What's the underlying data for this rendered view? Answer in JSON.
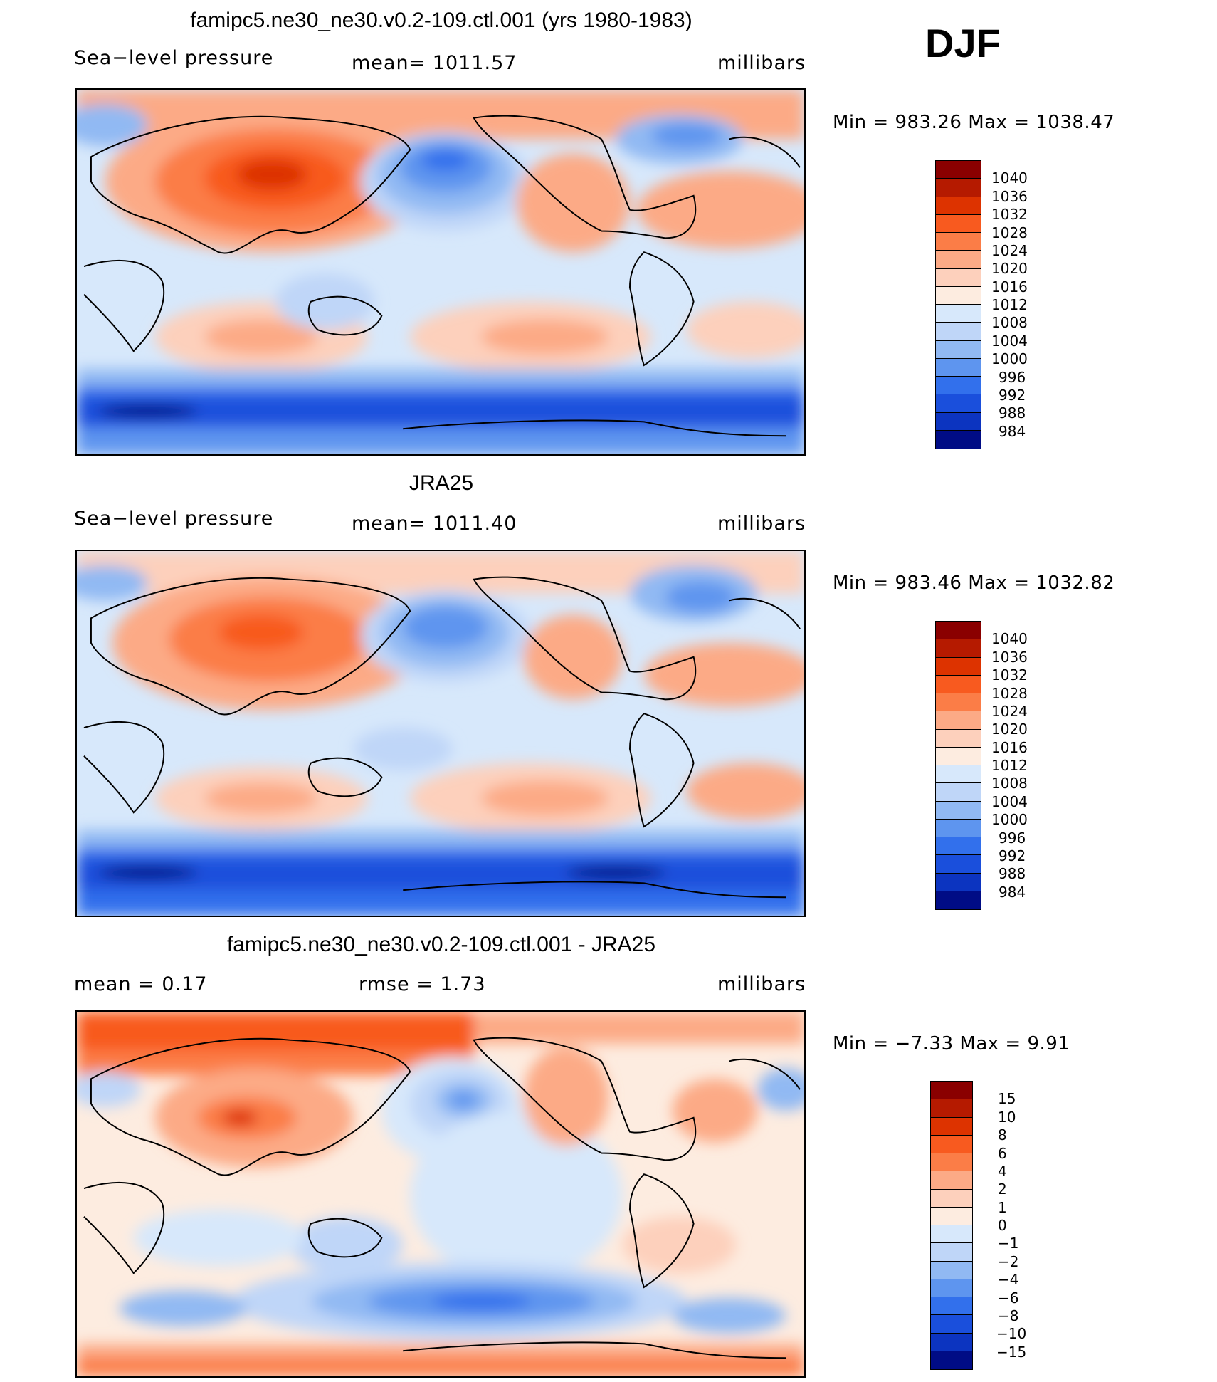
{
  "header": {
    "season": "DJF"
  },
  "panels": [
    {
      "title": "famipc5.ne30_ne30.v0.2-109.ctl.001 (yrs 1980-1983)",
      "left_label": "Sea−level pressure",
      "center_label": "mean=  1011.57",
      "right_label": "millibars",
      "minmax": "Min  =  983.26  Max  =  1038.47",
      "colorbar": {
        "labels": [
          "1040",
          "1036",
          "1032",
          "1028",
          "1024",
          "1020",
          "1016",
          "1012",
          "1008",
          "1004",
          "1000",
          "996",
          "992",
          "988",
          "984"
        ],
        "colors": [
          "#8a0000",
          "#b51a00",
          "#dd3300",
          "#f85a1f",
          "#fb7d47",
          "#fcaa86",
          "#fdd0bc",
          "#fdece0",
          "#d7e8fb",
          "#bfd6f8",
          "#91b9f3",
          "#5e95ef",
          "#3270ec",
          "#1a4fdc",
          "#0c34c0",
          "#000c85"
        ]
      }
    },
    {
      "title": "JRA25",
      "left_label": "Sea−level pressure",
      "center_label": "mean=  1011.40",
      "right_label": "millibars",
      "minmax": "Min  =  983.46  Max  =  1032.82",
      "colorbar": {
        "labels": [
          "1040",
          "1036",
          "1032",
          "1028",
          "1024",
          "1020",
          "1016",
          "1012",
          "1008",
          "1004",
          "1000",
          "996",
          "992",
          "988",
          "984"
        ],
        "colors": [
          "#8a0000",
          "#b51a00",
          "#dd3300",
          "#f85a1f",
          "#fb7d47",
          "#fcaa86",
          "#fdd0bc",
          "#fdece0",
          "#d7e8fb",
          "#bfd6f8",
          "#91b9f3",
          "#5e95ef",
          "#3270ec",
          "#1a4fdc",
          "#0c34c0",
          "#000c85"
        ]
      }
    },
    {
      "title": "famipc5.ne30_ne30.v0.2-109.ctl.001 - JRA25",
      "left_label": "mean =     0.17",
      "center_label": "rmse =     1.73",
      "right_label": "millibars",
      "minmax": "Min  =   −7.33  Max  =      9.91",
      "colorbar": {
        "labels": [
          "15",
          "10",
          "8",
          "6",
          "4",
          "2",
          "1",
          "0",
          "−1",
          "−2",
          "−4",
          "−6",
          "−8",
          "−10",
          "−15"
        ],
        "colors": [
          "#8a0000",
          "#b51a00",
          "#dd3300",
          "#f85a1f",
          "#fb7d47",
          "#fcaa86",
          "#fdd0bc",
          "#fdece0",
          "#d7e8fb",
          "#bfd6f8",
          "#91b9f3",
          "#5e95ef",
          "#3270ec",
          "#1a4fdc",
          "#0c34c0",
          "#000c85"
        ]
      }
    }
  ]
}
